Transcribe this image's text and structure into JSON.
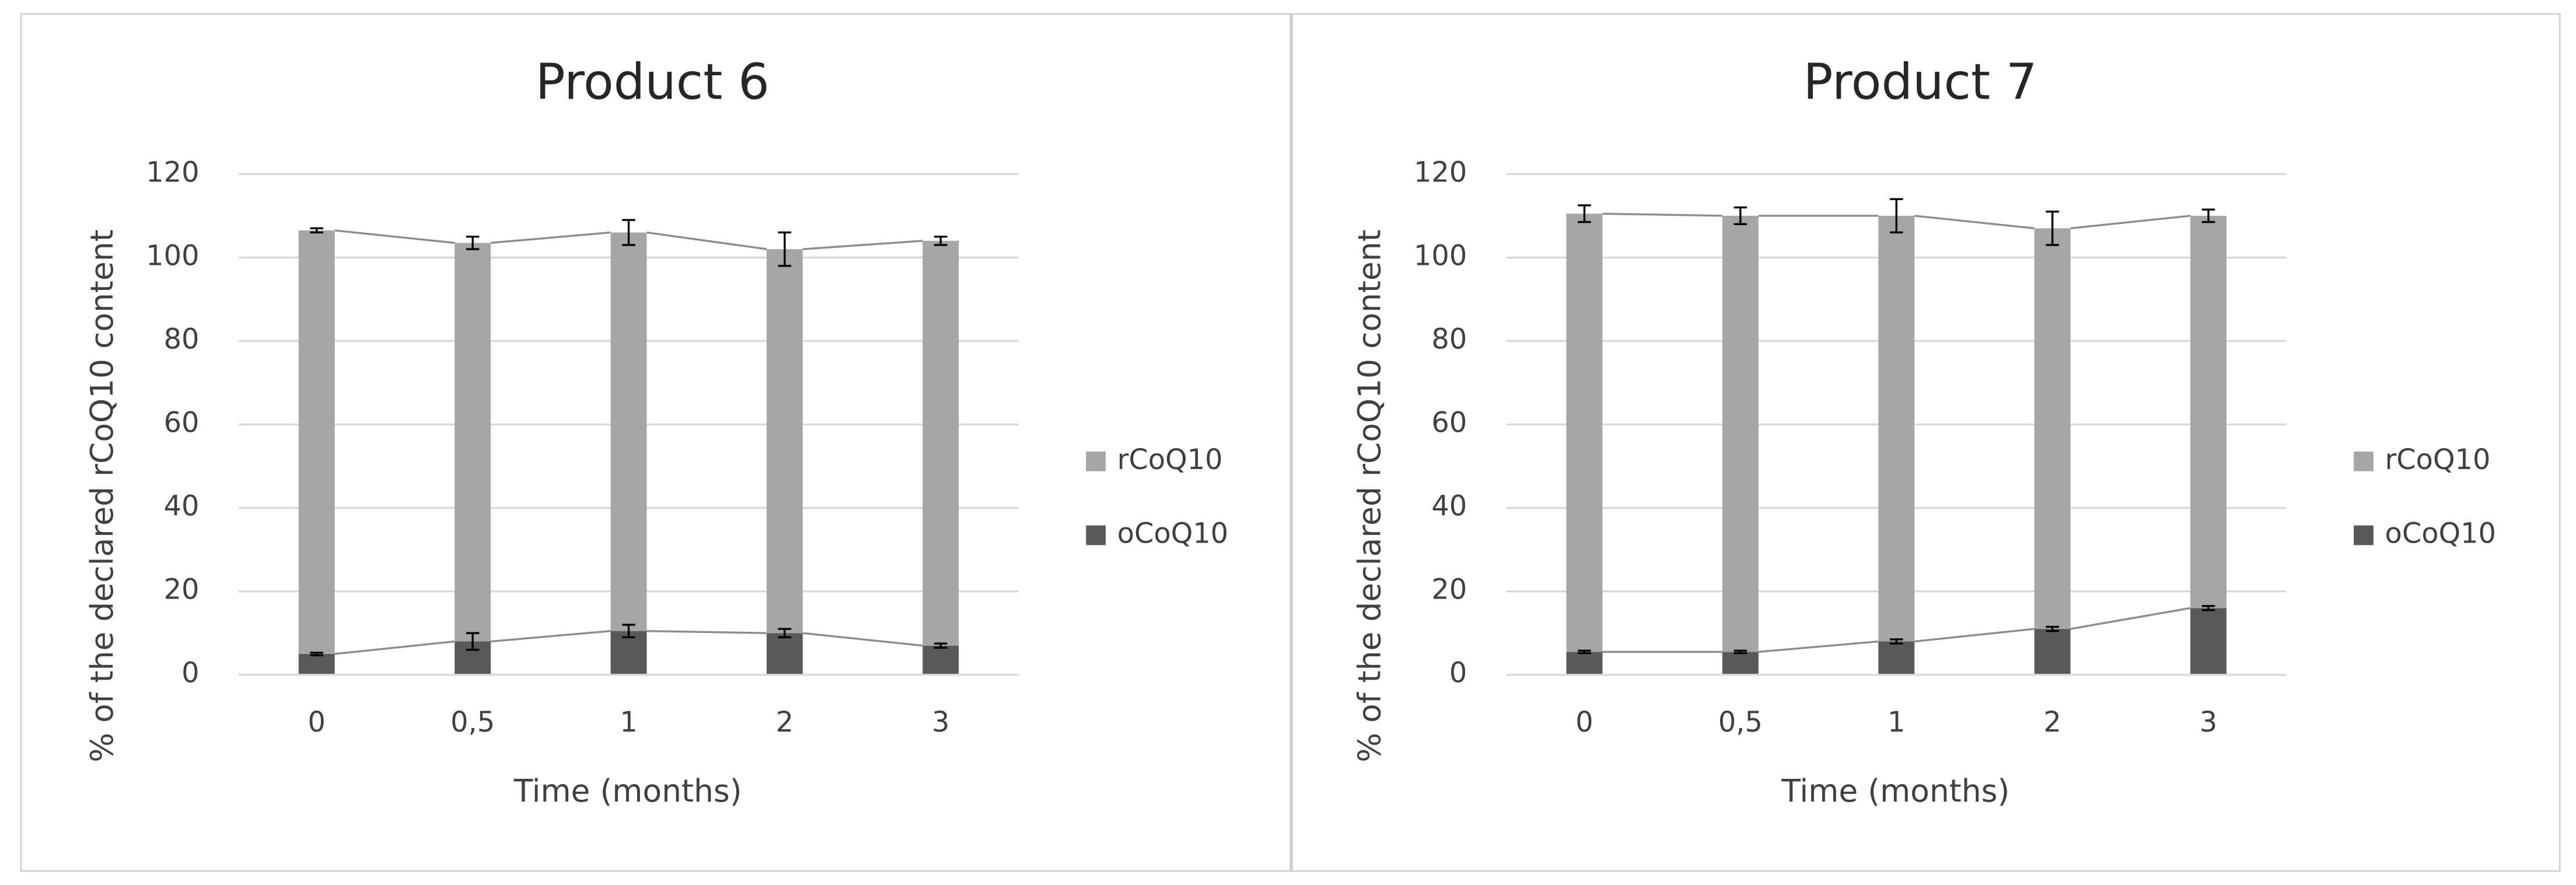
{
  "chart_data": [
    {
      "type": "bar",
      "stacked": true,
      "title": "Product 6",
      "x_label": "Time (months)",
      "y_label": "% of the declared rCoQ10  content",
      "categories": [
        "0",
        "0,5",
        "1",
        "2",
        "3"
      ],
      "series": [
        {
          "name": "oCoQ10",
          "color": "#595959",
          "values": [
            5,
            8,
            10.5,
            10,
            7
          ],
          "errors": [
            0.3,
            2,
            1.5,
            1,
            0.5
          ]
        },
        {
          "name": "rCoQ10",
          "color": "#a6a6a6",
          "values": [
            101.5,
            95.5,
            95.5,
            92,
            97
          ],
          "errors": [
            0.5,
            1.5,
            3,
            4,
            1
          ]
        }
      ],
      "ylim": [
        0,
        120
      ],
      "yticks": [
        0,
        20,
        40,
        60,
        80,
        100,
        120
      ],
      "grid": true,
      "legend": "right"
    },
    {
      "type": "bar",
      "stacked": true,
      "title": "Product 7",
      "x_label": "Time (months)",
      "y_label": "% of the declared rCoQ10  content",
      "categories": [
        "0",
        "0,5",
        "1",
        "2",
        "3"
      ],
      "series": [
        {
          "name": "oCoQ10",
          "color": "#595959",
          "values": [
            5.5,
            5.5,
            8,
            11,
            16
          ],
          "errors": [
            0.3,
            0.3,
            0.5,
            0.5,
            0.5
          ]
        },
        {
          "name": "rCoQ10",
          "color": "#a6a6a6",
          "values": [
            105,
            104.5,
            102,
            96,
            94
          ],
          "errors": [
            2,
            2,
            4,
            4,
            1.5
          ]
        }
      ],
      "ylim": [
        0,
        120
      ],
      "yticks": [
        0,
        20,
        40,
        60,
        80,
        100,
        120
      ],
      "grid": true,
      "legend": "right"
    }
  ]
}
